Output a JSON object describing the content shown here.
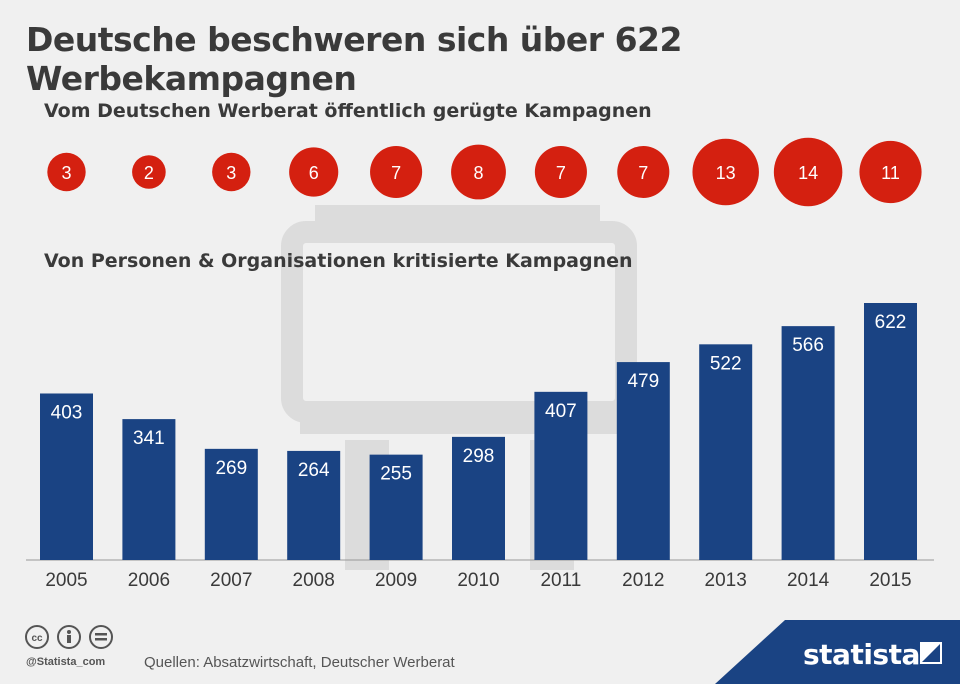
{
  "title": "Deutsche beschweren sich über 622 Werbekampagnen",
  "footer": {
    "source": "Quellen: Absatzwirtschaft, Deutscher Werberat",
    "handle": "@Statista_com",
    "brand": "statista"
  },
  "colors": {
    "bar": "#1a4383",
    "bubble": "#d42010",
    "background": "#f0f0f0",
    "billboard": "#dcdcdc"
  },
  "chart_data": [
    {
      "type": "scatter",
      "title": "Vom Deutschen Werberat öffentlich gerügte Kampagnen",
      "categories": [
        "2005",
        "2006",
        "2007",
        "2008",
        "2009",
        "2010",
        "2011",
        "2012",
        "2013",
        "2014",
        "2015"
      ],
      "values": [
        3,
        2,
        3,
        6,
        7,
        8,
        7,
        7,
        13,
        14,
        11
      ],
      "note": "values encoded as bubble size"
    },
    {
      "type": "bar",
      "title": "Von Personen & Organisationen kritisierte Kampagnen",
      "categories": [
        "2005",
        "2006",
        "2007",
        "2008",
        "2009",
        "2010",
        "2011",
        "2012",
        "2013",
        "2014",
        "2015"
      ],
      "values": [
        403,
        341,
        269,
        264,
        255,
        298,
        407,
        479,
        522,
        566,
        622
      ],
      "ylim": [
        0,
        622
      ],
      "grid": false
    }
  ]
}
